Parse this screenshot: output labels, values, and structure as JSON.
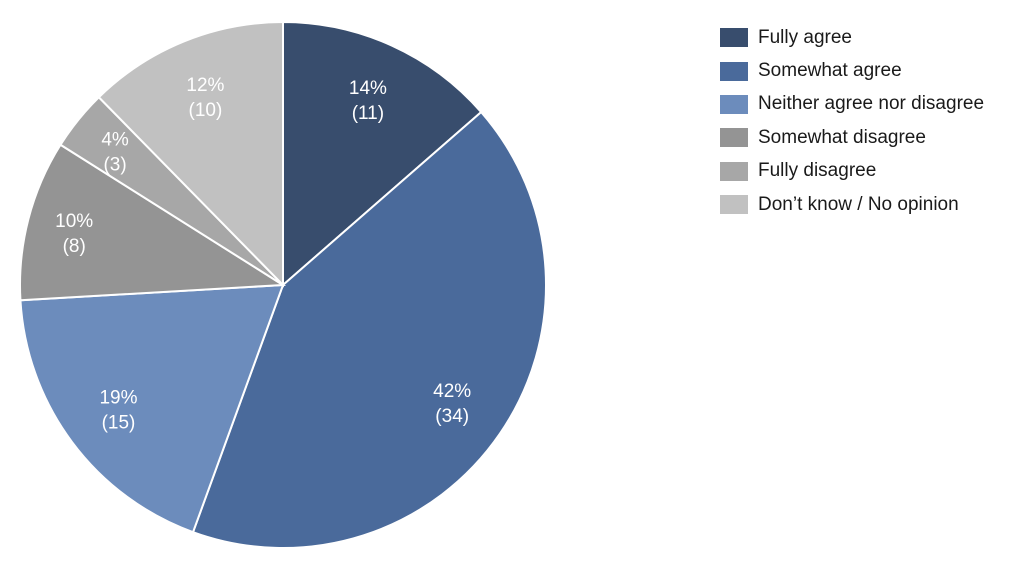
{
  "chart_data": {
    "type": "pie",
    "categories": [
      "Fully agree",
      "Somewhat agree",
      "Neither agree nor disagree",
      "Somewhat disagree",
      "Fully disagree",
      "Don’t know / No opinion"
    ],
    "values": [
      11,
      34,
      15,
      8,
      3,
      10
    ],
    "percent_labels": [
      "14%",
      "42%",
      "19%",
      "10%",
      "4%",
      "12%"
    ],
    "count_labels": [
      "(11)",
      "(34)",
      "(15)",
      "(8)",
      "(3)",
      "(10)"
    ],
    "colors": [
      "#384d6d",
      "#4a6a9b",
      "#6c8cbc",
      "#949494",
      "#a7a7a7",
      "#c1c1c1"
    ],
    "legend_position": "right"
  }
}
